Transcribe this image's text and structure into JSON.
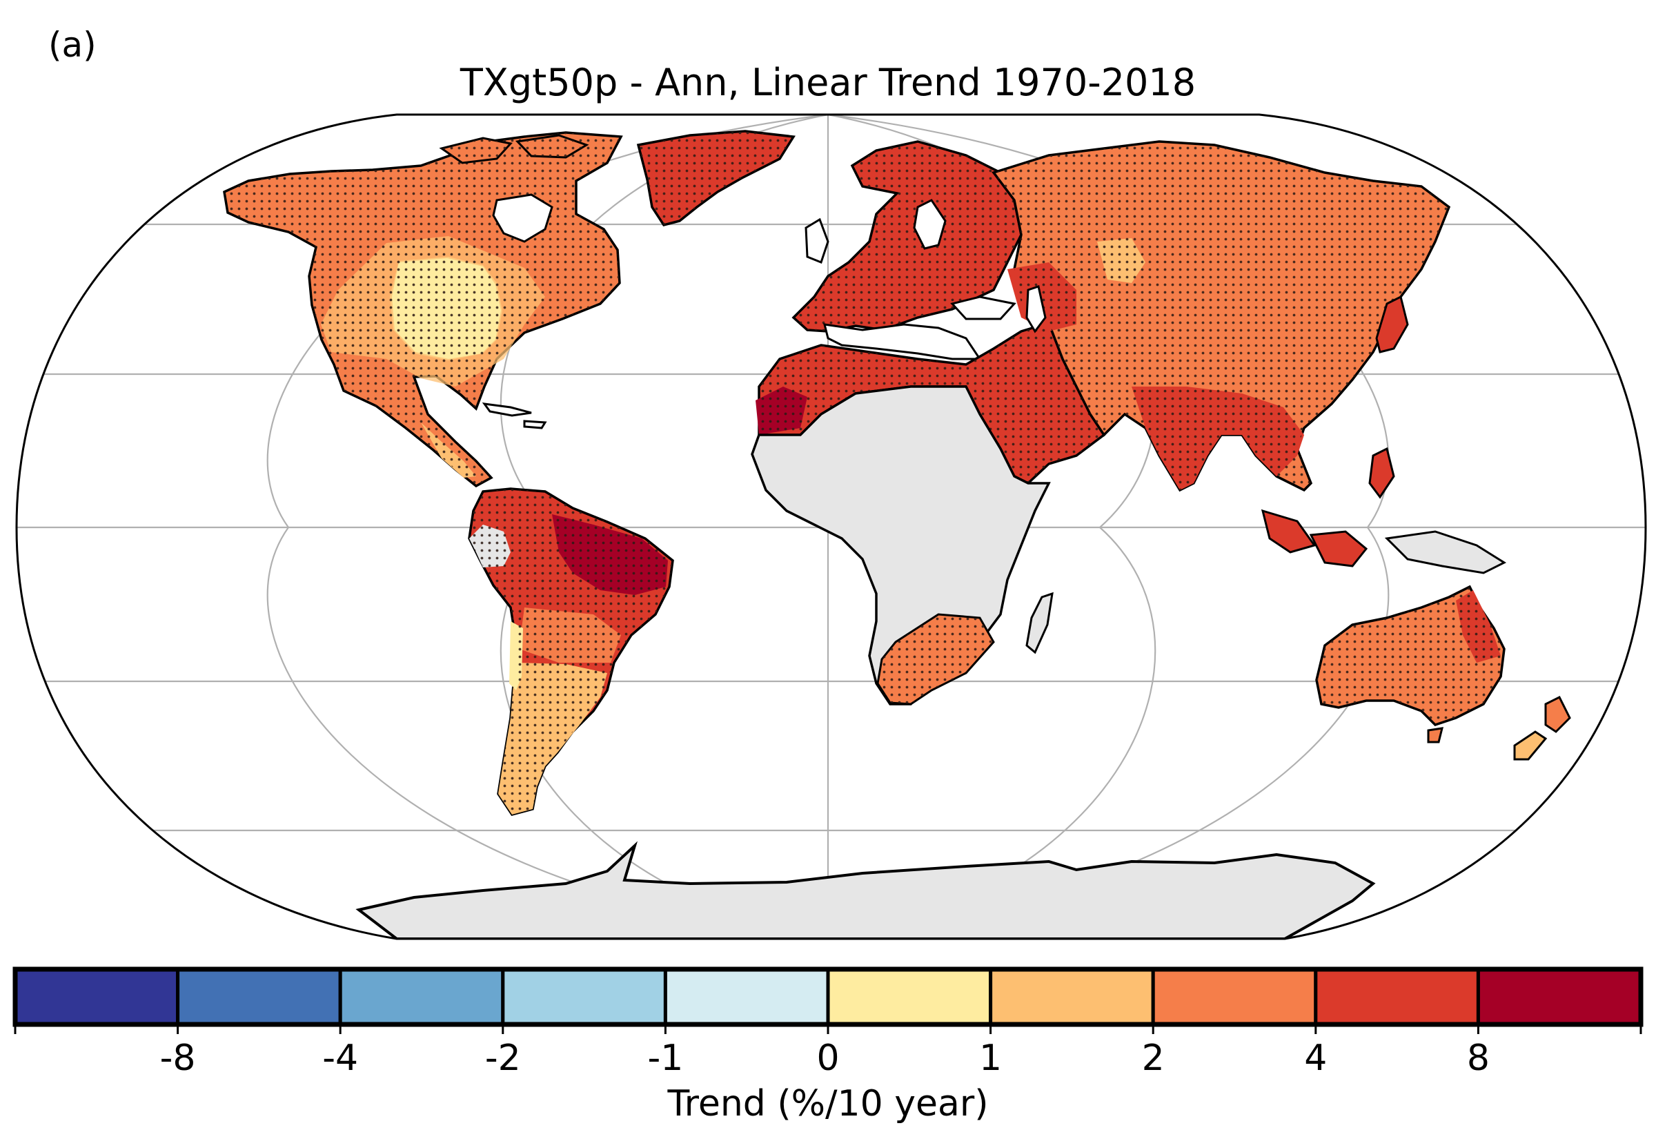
{
  "panel_label": "(a)",
  "title": "TXgt50p - Ann, Linear Trend 1970-2018",
  "colorbar": {
    "label": "Trend (%/10 year)",
    "tick_labels": [
      "-8",
      "-4",
      "-2",
      "-1",
      "0",
      "1",
      "2",
      "4",
      "8"
    ],
    "colors": [
      "#313695",
      "#4575b4",
      "#74add1",
      "#abd9e9",
      "#e0f3f8",
      "#ffffbf",
      "#fee090",
      "#fdae61",
      "#f46d43",
      "#d73027",
      "#a50026"
    ],
    "bin_colors": [
      "#313695",
      "#4271b4",
      "#6aa6cf",
      "#a1d1e5",
      "#d5ecf2",
      "#feeca0",
      "#fdbf71",
      "#f57e4a",
      "#db3a2b",
      "#a50026"
    ]
  },
  "map": {
    "projection": "Robinson",
    "no_data_color": "#e6e6e6",
    "ocean_color": "#ffffff",
    "stippling": "significant trend",
    "regions": [
      {
        "name": "North America (Canada/Alaska)",
        "trend_class": "2 to 4"
      },
      {
        "name": "Central/Eastern United States",
        "trend_class": "0 to 1"
      },
      {
        "name": "Mexico",
        "trend_class": "2 to 4"
      },
      {
        "name": "Greenland",
        "trend_class": "4 to 8"
      },
      {
        "name": "Europe",
        "trend_class": "4 to 8"
      },
      {
        "name": "North Africa",
        "trend_class": "4 to 8"
      },
      {
        "name": "Middle East",
        "trend_class": "4 to 8"
      },
      {
        "name": "Russia / Northern Asia",
        "trend_class": "2 to 4"
      },
      {
        "name": "South and Southeast Asia",
        "trend_class": "4 to 8"
      },
      {
        "name": "Northern South America",
        "trend_class": "> 8"
      },
      {
        "name": "Southern South America",
        "trend_class": "1 to 2"
      },
      {
        "name": "Southern Africa",
        "trend_class": "2 to 4"
      },
      {
        "name": "Australia",
        "trend_class": "2 to 4"
      },
      {
        "name": "Central Africa",
        "trend_class": "no data"
      },
      {
        "name": "Antarctica",
        "trend_class": "no data"
      }
    ]
  }
}
